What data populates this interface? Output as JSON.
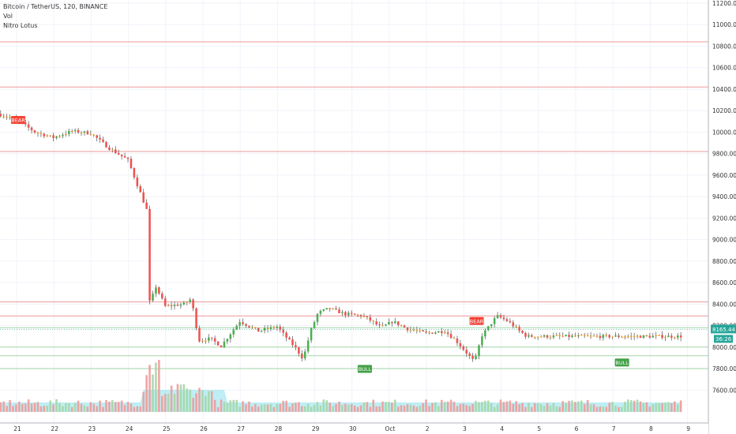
{
  "legend": {
    "symbol_line": "Bitcoin / TetherUS, 120, BINANCE",
    "indicator_1": "Vol",
    "indicator_2": "Nitro Lotus"
  },
  "colors": {
    "up": "#26a69a",
    "up_bright": "#4caf50",
    "down": "#ef5350",
    "neutral": "#ff9800",
    "volume": "#9e9e9e",
    "volume_ma": "#80deea",
    "resistance": "#ef9a9a",
    "support": "#a5d6a7",
    "bear_tag": "#f44336",
    "bull_tag": "#43a047"
  },
  "price_axis": {
    "ticks": [
      "11200.00",
      "11000.00",
      "10800.00",
      "10600.00",
      "10400.00",
      "10200.00",
      "10000.00",
      "9800.00",
      "9600.00",
      "9400.00",
      "9200.00",
      "9000.00",
      "8800.00",
      "8600.00",
      "8400.00",
      "8200.00",
      "8000.00",
      "7800.00",
      "7600.00"
    ],
    "last_price_label": "8165.44",
    "countdown_label": "36:26"
  },
  "time_axis": {
    "labels": [
      "21",
      "22",
      "23",
      "24",
      "25",
      "26",
      "27",
      "28",
      "29",
      "30",
      "Oct",
      "2",
      "3",
      "4",
      "5",
      "6",
      "7",
      "8",
      "9"
    ]
  },
  "signals": [
    {
      "type": "BEAR",
      "x_date": "Sep 21",
      "price": 10150
    },
    {
      "type": "BULL",
      "x_date": "Sep 30",
      "price": 7790
    },
    {
      "type": "BEAR",
      "x_date": "Oct 3",
      "price": 8280
    },
    {
      "type": "BULL",
      "x_date": "Oct 7",
      "price": 7850
    }
  ],
  "chart_data": {
    "type": "candlestick",
    "title": "Bitcoin / TetherUS, 120, BINANCE",
    "x_range": [
      "Sep 21",
      "Oct 9"
    ],
    "ylim": [
      7500,
      11200
    ],
    "grid": true,
    "horizontal_levels": {
      "resistance": [
        10840,
        10420,
        9820,
        8420,
        8290
      ],
      "support": [
        8180,
        8000,
        7920,
        7800
      ]
    },
    "price_path": [
      [
        0,
        10170
      ],
      [
        0.5,
        10120
      ],
      [
        1,
        10000
      ],
      [
        1.5,
        9950
      ],
      [
        2,
        10010
      ],
      [
        2.5,
        9990
      ],
      [
        3,
        9850
      ],
      [
        3.5,
        9740
      ],
      [
        4,
        9280
      ],
      [
        4.1,
        8250
      ],
      [
        4.2,
        8600
      ],
      [
        4.5,
        8380
      ],
      [
        5,
        8400
      ],
      [
        5.2,
        8450
      ],
      [
        5.4,
        8060
      ],
      [
        5.7,
        8080
      ],
      [
        6,
        8010
      ],
      [
        6.5,
        8240
      ],
      [
        7,
        8150
      ],
      [
        7.5,
        8190
      ],
      [
        8,
        7990
      ],
      [
        8.2,
        7890
      ],
      [
        8.4,
        8150
      ],
      [
        8.6,
        8320
      ],
      [
        8.9,
        8360
      ],
      [
        9.3,
        8310
      ],
      [
        9.8,
        8290
      ],
      [
        10,
        8250
      ],
      [
        10.3,
        8180
      ],
      [
        10.6,
        8240
      ],
      [
        11,
        8170
      ],
      [
        11.5,
        8130
      ],
      [
        12,
        8150
      ],
      [
        12.3,
        8060
      ],
      [
        12.6,
        7940
      ],
      [
        12.8,
        7860
      ],
      [
        12.9,
        7990
      ],
      [
        13,
        8110
      ],
      [
        13.4,
        8290
      ],
      [
        13.7,
        8240
      ],
      [
        14,
        8150
      ],
      [
        14.2,
        8100
      ]
    ],
    "volume": {
      "name": "Vol",
      "spike_days": [
        "Sep 24",
        "Sep 25",
        "Sep 26"
      ],
      "peak_date": "Sep 24"
    }
  }
}
